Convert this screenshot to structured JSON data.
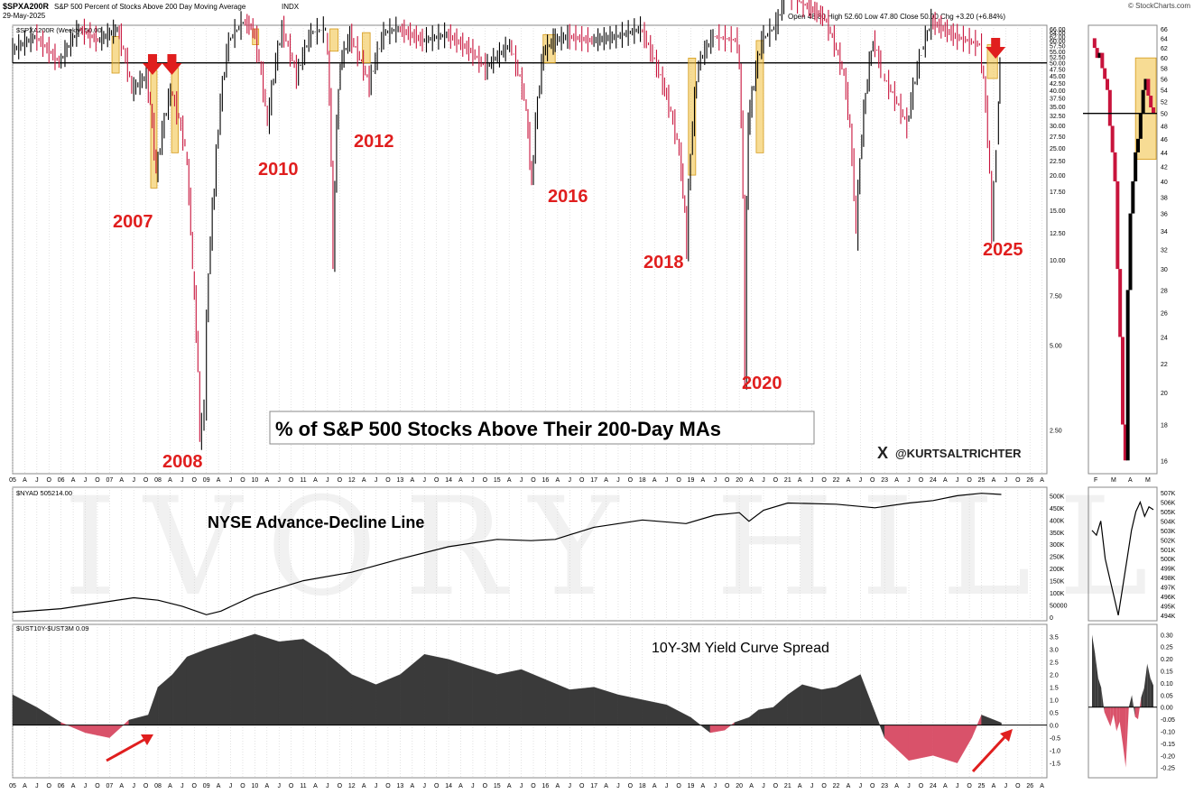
{
  "header": {
    "symbol": "$SPXA200R",
    "description": "S&P 500 Percent of Stocks Above 200 Day Moving Average",
    "exchange": "INDX",
    "date": "29-May-2025",
    "ohlc": "Open 48.80  High 52.60  Low 47.80  Close 50.00  Chg +3.20 (+6.84%)",
    "source": "© StockCharts.com"
  },
  "watermark": "IVORY HILL",
  "handle": "@KURTSALTRICHTER",
  "handle_icon": "x-logo-icon",
  "colors": {
    "up": "#000000",
    "down": "#c8143c",
    "zone": "#f2c44c",
    "arrow": "#e01e1e",
    "area": "#3a3a3a",
    "neg_area": "#d9526a"
  },
  "chart_data": [
    {
      "type": "line",
      "title": "% of S&P 500 Stocks Above Their 200-Day MAs",
      "series_label": "$SPXA200R (Weekly) 50.00",
      "scale": "log",
      "y_ticks": [
        "66.00",
        "64.00",
        "62.00",
        "60.00",
        "57.50",
        "55.00",
        "52.50",
        "50.00",
        "47.50",
        "45.00",
        "42.50",
        "40.00",
        "37.50",
        "35.00",
        "32.50",
        "30.00",
        "27.50",
        "25.00",
        "22.50",
        "20.00",
        "17.50",
        "15.00",
        "12.50",
        "10.00",
        "7.50",
        "5.00",
        "2.50"
      ],
      "reference_line": 50,
      "annotations": [
        "2007",
        "2008",
        "2010",
        "2012",
        "2016",
        "2018",
        "2020",
        "2025"
      ],
      "x": [
        2005.0,
        2005.5,
        2006.0,
        2006.4,
        2006.8,
        2007.2,
        2007.5,
        2007.8,
        2008.0,
        2008.3,
        2008.6,
        2008.75,
        2008.9,
        2009.0,
        2009.2,
        2009.5,
        2009.8,
        2010.0,
        2010.3,
        2010.6,
        2010.9,
        2011.2,
        2011.5,
        2011.65,
        2011.8,
        2012.0,
        2012.4,
        2012.7,
        2013.0,
        2013.5,
        2014.0,
        2014.5,
        2014.8,
        2015.3,
        2015.6,
        2015.75,
        2016.0,
        2016.2,
        2016.5,
        2017.0,
        2017.5,
        2018.0,
        2018.5,
        2018.8,
        2018.95,
        2019.2,
        2019.5,
        2020.0,
        2020.15,
        2020.22,
        2020.5,
        2020.8,
        2021.0,
        2021.4,
        2021.8,
        2022.2,
        2022.45,
        2022.8,
        2023.0,
        2023.5,
        2023.8,
        2024.0,
        2024.5,
        2025.0,
        2025.25,
        2025.35,
        2025.41
      ],
      "y": [
        55,
        62,
        50,
        66,
        60,
        66,
        40,
        45,
        20,
        40,
        25,
        9,
        2.3,
        3.0,
        18,
        60,
        70,
        66,
        30,
        66,
        45,
        64,
        66,
        9,
        50,
        62,
        42,
        64,
        66,
        60,
        63,
        55,
        48,
        58,
        38,
        18,
        55,
        60,
        62,
        60,
        62,
        66,
        40,
        24,
        11,
        50,
        62,
        60,
        3.5,
        30,
        60,
        68,
        88,
        80,
        72,
        45,
        12,
        60,
        45,
        30,
        55,
        70,
        62,
        58,
        12,
        25,
        50
      ]
    },
    {
      "type": "line",
      "title": "NYSE Advance-Decline Line",
      "series_label": "$NYAD 505214.00",
      "y_ticks": [
        "500K",
        "450K",
        "400K",
        "350K",
        "300K",
        "250K",
        "200K",
        "150K",
        "100K",
        "50000",
        "0"
      ],
      "x": [
        2005.0,
        2006.0,
        2007.0,
        2007.5,
        2008.0,
        2008.5,
        2009.0,
        2009.3,
        2010.0,
        2011.0,
        2012.0,
        2013.0,
        2014.0,
        2015.0,
        2015.7,
        2016.2,
        2017.0,
        2018.0,
        2018.9,
        2019.5,
        2020.0,
        2020.2,
        2020.5,
        2021.0,
        2022.0,
        2022.8,
        2023.5,
        2024.0,
        2024.5,
        2025.0,
        2025.41
      ],
      "y": [
        20000,
        35000,
        65000,
        80000,
        70000,
        45000,
        10000,
        25000,
        90000,
        150000,
        185000,
        240000,
        290000,
        320000,
        315000,
        320000,
        370000,
        400000,
        385000,
        420000,
        430000,
        395000,
        440000,
        470000,
        465000,
        450000,
        470000,
        480000,
        500000,
        510000,
        505214
      ]
    },
    {
      "type": "area",
      "title": "10Y-3M Yield Curve Spread",
      "series_label": "$UST10Y-$UST3M 0.09",
      "y_ticks": [
        "3.5",
        "3.0",
        "2.5",
        "2.0",
        "1.5",
        "1.0",
        "0.5",
        "0.0",
        "-0.5",
        "-1.0",
        "-1.5"
      ],
      "x": [
        2005.0,
        2005.5,
        2006.0,
        2006.5,
        2007.0,
        2007.4,
        2007.8,
        2008.0,
        2008.3,
        2008.6,
        2009.0,
        2009.5,
        2010.0,
        2010.5,
        2011.0,
        2011.5,
        2012.0,
        2012.5,
        2013.0,
        2013.5,
        2014.0,
        2014.5,
        2015.0,
        2015.5,
        2016.0,
        2016.5,
        2017.0,
        2017.5,
        2018.0,
        2018.5,
        2019.0,
        2019.4,
        2019.7,
        2019.9,
        2020.2,
        2020.4,
        2020.7,
        2021.0,
        2021.3,
        2021.7,
        2022.0,
        2022.5,
        2022.8,
        2023.0,
        2023.5,
        2024.0,
        2024.5,
        2024.8,
        2025.0,
        2025.41
      ],
      "y": [
        1.2,
        0.7,
        0.1,
        -0.3,
        -0.5,
        0.2,
        0.4,
        1.5,
        2.0,
        2.7,
        3.0,
        3.3,
        3.6,
        3.3,
        3.4,
        2.8,
        2.0,
        1.6,
        2.0,
        2.8,
        2.6,
        2.3,
        2.0,
        2.2,
        1.8,
        1.4,
        1.5,
        1.2,
        1.0,
        0.8,
        0.3,
        -0.3,
        -0.2,
        0.1,
        0.3,
        0.6,
        0.7,
        1.2,
        1.6,
        1.4,
        1.5,
        2.0,
        0.5,
        -0.5,
        -1.4,
        -1.2,
        -1.5,
        -0.5,
        0.4,
        0.09
      ]
    },
    {
      "type": "line",
      "title": "",
      "series_label": "$SPXA200R inset (daily)",
      "scale": "log",
      "x_ticks": [
        "F",
        "M",
        "A",
        "M"
      ],
      "y_ticks": [
        "66",
        "64",
        "62",
        "60",
        "58",
        "56",
        "54",
        "52",
        "50",
        "48",
        "46",
        "44",
        "42",
        "40",
        "38",
        "36",
        "34",
        "32",
        "30",
        "28",
        "26",
        "24",
        "22",
        "20",
        "18",
        "16"
      ],
      "x": [
        0,
        1,
        2,
        3,
        4,
        5,
        6,
        7,
        8,
        9,
        10,
        11,
        12,
        13,
        14,
        15,
        16,
        17,
        18,
        19,
        20,
        21,
        22,
        23,
        24
      ],
      "y": [
        64,
        62,
        60,
        61,
        58,
        56,
        54,
        48,
        44,
        40,
        30,
        24,
        18,
        16,
        28,
        36,
        40,
        44,
        46,
        50,
        54,
        56,
        53,
        51,
        50
      ]
    },
    {
      "type": "line",
      "title": "",
      "series_label": "$NYAD inset",
      "y_ticks": [
        "507K",
        "506K",
        "505K",
        "504K",
        "503K",
        "502K",
        "501K",
        "500K",
        "499K",
        "498K",
        "497K",
        "496K",
        "495K",
        "494K"
      ],
      "x": [
        0,
        1,
        2,
        3,
        4,
        5,
        6,
        7,
        8,
        9,
        10,
        11,
        12,
        13,
        14
      ],
      "y": [
        503,
        502.5,
        504,
        500,
        498,
        496,
        494,
        497,
        500,
        503,
        505,
        506,
        504.5,
        505.5,
        505.2
      ]
    },
    {
      "type": "area",
      "title": "",
      "series_label": "$UST10Y-$UST3M inset",
      "y_ticks": [
        "0.30",
        "0.25",
        "0.20",
        "0.15",
        "0.10",
        "0.05",
        "0.00",
        "-0.05",
        "-0.10",
        "-0.15",
        "-0.20",
        "-0.25"
      ],
      "x": [
        0,
        1,
        2,
        3,
        4,
        5,
        6,
        7,
        8,
        9,
        10,
        11,
        12,
        13,
        14,
        15,
        16,
        17,
        18,
        19,
        20
      ],
      "y": [
        0.3,
        0.22,
        0.12,
        0.08,
        -0.02,
        -0.05,
        -0.08,
        -0.03,
        -0.1,
        -0.06,
        -0.15,
        -0.25,
        0.0,
        0.05,
        -0.04,
        -0.05,
        0.04,
        0.08,
        0.18,
        0.12,
        0.09
      ]
    }
  ],
  "x_axis_labels": [
    "05",
    "A",
    "J",
    "O",
    "06",
    "A",
    "J",
    "O",
    "07",
    "A",
    "J",
    "O",
    "08",
    "A",
    "J",
    "O",
    "09",
    "A",
    "J",
    "O",
    "10",
    "A",
    "J",
    "O",
    "11",
    "A",
    "J",
    "O",
    "12",
    "A",
    "J",
    "O",
    "13",
    "A",
    "J",
    "O",
    "14",
    "A",
    "J",
    "O",
    "15",
    "A",
    "J",
    "O",
    "16",
    "A",
    "J",
    "O",
    "17",
    "A",
    "J",
    "O",
    "18",
    "A",
    "J",
    "O",
    "19",
    "A",
    "J",
    "O",
    "20",
    "A",
    "J",
    "O",
    "21",
    "A",
    "J",
    "O",
    "22",
    "A",
    "J",
    "O",
    "23",
    "A",
    "J",
    "O",
    "24",
    "A",
    "J",
    "O",
    "25",
    "A",
    "J",
    "O",
    "26",
    "A",
    "J",
    "O"
  ]
}
